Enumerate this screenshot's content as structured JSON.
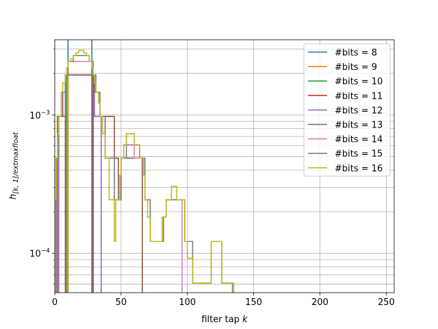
{
  "chart_data": {
    "type": "line",
    "step": true,
    "xlabel": "filter tap k",
    "xlabel_parts": [
      "filter tap ",
      "k"
    ],
    "ylabel": "h_[k, 1]/extmaxfloat",
    "ylabel_parts": [
      "h",
      "[k, 1]/extmaxfloat"
    ],
    "xlim": [
      0,
      256
    ],
    "ylim": [
      5.2e-05,
      0.0035
    ],
    "yscale": "log",
    "xticks": [
      0,
      50,
      100,
      150,
      200,
      250
    ],
    "xtick_labels": [
      "0",
      "50",
      "100",
      "150",
      "200",
      "250"
    ],
    "ytick_labels": [
      {
        "value": 0.0001,
        "base": "10",
        "exp": "−4"
      },
      {
        "value": 0.001,
        "base": "10",
        "exp": "−3"
      }
    ],
    "grid": true,
    "legend_position": "upper right",
    "series": [
      {
        "name": "#bits = 8",
        "color": "#1f77b4",
        "points": [
          [
            10,
            0.0039
          ],
          [
            28,
            0.0039
          ]
        ]
      },
      {
        "name": "#bits = 9",
        "color": "#ff7f0e",
        "points": [
          [
            10,
            0.00195
          ],
          [
            29,
            0.00195
          ]
        ]
      },
      {
        "name": "#bits = 10",
        "color": "#2ca02c",
        "points": [
          [
            9,
            0.00195
          ],
          [
            29,
            0.00195
          ]
        ]
      },
      {
        "name": "#bits = 11",
        "color": "#d62728",
        "points": [
          [
            8,
            0.00195
          ],
          [
            29,
            0.00195
          ]
        ]
      },
      {
        "name": "#bits = 12",
        "color": "#9467bd",
        "points": [
          [
            3,
            0.000977
          ],
          [
            7,
            0.000977
          ],
          [
            8,
            0.00195
          ],
          [
            29,
            0.00195
          ],
          [
            30,
            0.000977
          ],
          [
            35,
            0.000977
          ]
        ]
      },
      {
        "name": "#bits = 13",
        "color": "#8c564b",
        "points": [
          [
            2,
            0.000977
          ],
          [
            5,
            0.000977
          ],
          [
            6,
            0.00146
          ],
          [
            8,
            0.00195
          ],
          [
            29,
            0.00195
          ],
          [
            30,
            0.00146
          ],
          [
            33,
            0.00146
          ],
          [
            34,
            0.000977
          ],
          [
            39,
            0.000977
          ],
          [
            45,
            0.000488
          ],
          [
            48,
            0.000244
          ],
          [
            49,
            0.000244
          ],
          [
            50,
            0.000488
          ],
          [
            66,
            0.000488
          ]
        ]
      },
      {
        "name": "#bits = 14",
        "color": "#e377c2",
        "points": [
          [
            1,
            0.000488
          ],
          [
            3,
            0.000977
          ],
          [
            5,
            0.00146
          ],
          [
            8,
            0.00195
          ],
          [
            10,
            0.00244
          ],
          [
            26,
            0.00244
          ],
          [
            29,
            0.00195
          ],
          [
            31,
            0.00146
          ],
          [
            34,
            0.000977
          ],
          [
            38,
            0.000488
          ],
          [
            45,
            0.000244
          ],
          [
            48,
            0.000244
          ],
          [
            50,
            0.000488
          ],
          [
            52,
            0.00061
          ],
          [
            58,
            0.00061
          ],
          [
            60,
            0.000488
          ],
          [
            66,
            0.000488
          ],
          [
            68,
            0.000244
          ],
          [
            72,
            0.000122
          ],
          [
            80,
            0.000122
          ],
          [
            82,
            0.000183
          ],
          [
            84,
            0.000244
          ],
          [
            90,
            0.000244
          ],
          [
            96,
            0.000244
          ]
        ]
      },
      {
        "name": "#bits = 15",
        "color": "#7f7f7f",
        "points": [
          [
            1,
            0.000488
          ],
          [
            3,
            0.000977
          ],
          [
            5,
            0.00146
          ],
          [
            8,
            0.00195
          ],
          [
            10,
            0.00244
          ],
          [
            14,
            0.00269
          ],
          [
            24,
            0.00269
          ],
          [
            26,
            0.00244
          ],
          [
            29,
            0.00195
          ],
          [
            31,
            0.00146
          ],
          [
            34,
            0.000977
          ],
          [
            38,
            0.000488
          ],
          [
            45,
            0.000244
          ],
          [
            48,
            0.000244
          ],
          [
            50,
            0.000488
          ],
          [
            54,
            0.000732
          ],
          [
            58,
            0.000732
          ],
          [
            60,
            0.00061
          ],
          [
            64,
            0.000488
          ],
          [
            66,
            0.000488
          ],
          [
            68,
            0.000244
          ],
          [
            72,
            0.000122
          ],
          [
            80,
            0.000122
          ],
          [
            82,
            0.000183
          ],
          [
            84,
            0.000244
          ],
          [
            90,
            0.000244
          ],
          [
            96,
            0.000244
          ],
          [
            98,
            0.000122
          ],
          [
            104,
            6.1e-05
          ],
          [
            110,
            6.1e-05
          ],
          [
            116,
            6.1e-05
          ],
          [
            118,
            0.000122
          ],
          [
            124,
            0.000122
          ],
          [
            126,
            6.1e-05
          ],
          [
            134,
            6.1e-05
          ]
        ]
      },
      {
        "name": "#bits = 16",
        "color": "#bcbd22",
        "points": [
          [
            0,
            0.000244
          ],
          [
            1,
            0.000488
          ],
          [
            2,
            0.000732
          ],
          [
            3,
            0.000977
          ],
          [
            5,
            0.00146
          ],
          [
            6,
            0.00171
          ],
          [
            8,
            0.00195
          ],
          [
            9,
            0.0022
          ],
          [
            10,
            0.00244
          ],
          [
            12,
            0.00256
          ],
          [
            14,
            0.00269
          ],
          [
            16,
            0.00281
          ],
          [
            18,
            0.00293
          ],
          [
            22,
            0.00281
          ],
          [
            24,
            0.00269
          ],
          [
            26,
            0.00244
          ],
          [
            28,
            0.0022
          ],
          [
            29,
            0.00195
          ],
          [
            30,
            0.00171
          ],
          [
            31,
            0.00146
          ],
          [
            33,
            0.00122
          ],
          [
            34,
            0.000977
          ],
          [
            36,
            0.000732
          ],
          [
            38,
            0.000488
          ],
          [
            41,
            0.000244
          ],
          [
            45,
            0.000122
          ],
          [
            46,
            0.000244
          ],
          [
            48,
            0.000244
          ],
          [
            49,
            0.000366
          ],
          [
            50,
            0.000488
          ],
          [
            52,
            0.00061
          ],
          [
            54,
            0.000732
          ],
          [
            59,
            0.000732
          ],
          [
            60,
            0.00061
          ],
          [
            62,
            0.00061
          ],
          [
            64,
            0.000488
          ],
          [
            66,
            0.000488
          ],
          [
            67,
            0.000366
          ],
          [
            68,
            0.000244
          ],
          [
            70,
            0.000183
          ],
          [
            72,
            0.000122
          ],
          [
            79,
            0.000122
          ],
          [
            81,
            0.000183
          ],
          [
            84,
            0.000244
          ],
          [
            88,
            0.000305
          ],
          [
            91,
            0.000305
          ],
          [
            92,
            0.000244
          ],
          [
            96,
            0.000244
          ],
          [
            98,
            0.000122
          ],
          [
            100,
            9.2e-05
          ],
          [
            104,
            6.1e-05
          ],
          [
            108,
            6.1e-05
          ],
          [
            110,
            6.1e-05
          ],
          [
            116,
            6.1e-05
          ],
          [
            118,
            0.000122
          ],
          [
            124,
            0.000122
          ],
          [
            126,
            6.1e-05
          ],
          [
            135,
            6.1e-05
          ]
        ]
      }
    ]
  }
}
